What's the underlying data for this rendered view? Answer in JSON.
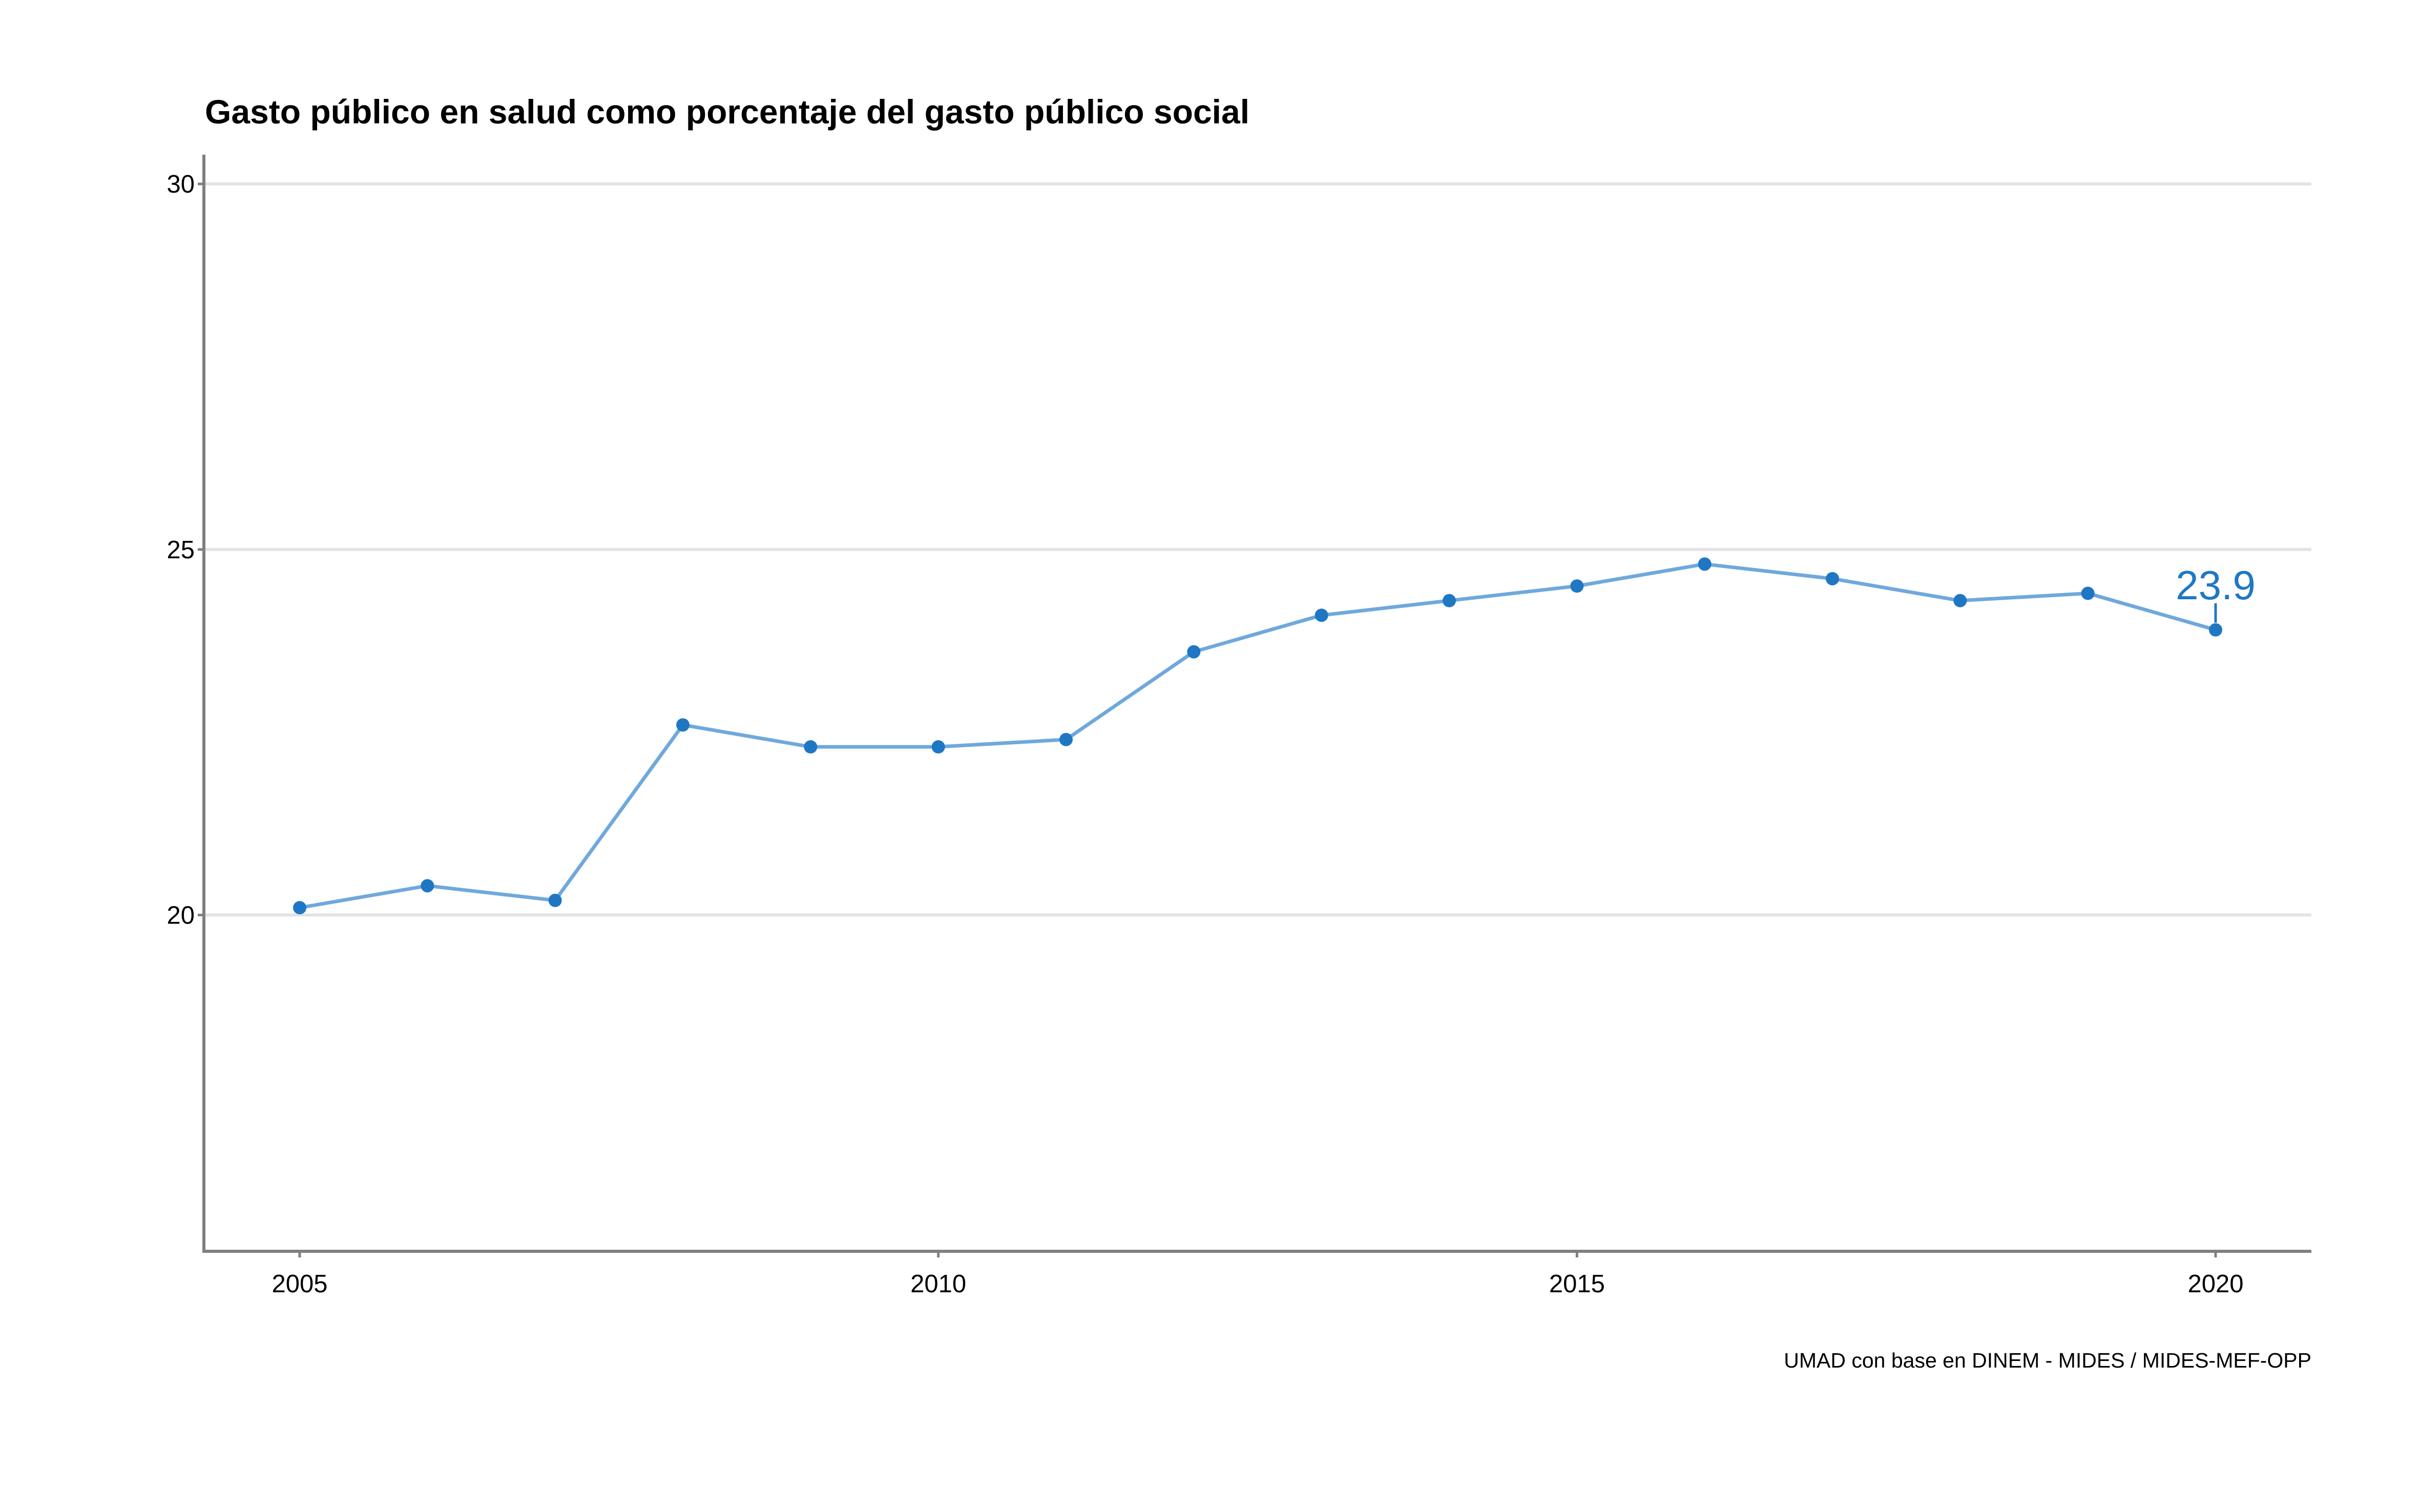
{
  "chart_data": {
    "type": "line",
    "title": "Gasto público en salud como porcentaje del gasto público social",
    "xlabel": "",
    "ylabel": "",
    "caption": "UMAD con base en DINEM - MIDES / MIDES-MEF-OPP",
    "x": [
      2005,
      2006,
      2007,
      2008,
      2009,
      2010,
      2011,
      2012,
      2013,
      2014,
      2015,
      2016,
      2017,
      2018,
      2019,
      2020
    ],
    "series": [
      {
        "values": [
          20.1,
          20.4,
          20.2,
          22.6,
          22.3,
          22.3,
          22.4,
          23.6,
          24.1,
          24.3,
          24.5,
          24.8,
          24.6,
          24.3,
          24.4,
          23.9
        ]
      }
    ],
    "xticks": [
      "2005",
      "2010",
      "2015",
      "2020"
    ],
    "yticks": [
      "20",
      "25",
      "30"
    ],
    "xlim": [
      2004.25,
      2020.75
    ],
    "ylim": [
      15.4,
      30.4
    ],
    "end_label": {
      "x": 2020,
      "text": "23.9"
    },
    "grid": "horizontal",
    "colors": {
      "line": "#6fa8dc",
      "points": "#1f77c4",
      "label": "#1f77c4",
      "grid": "#e3e3e3",
      "axis": "#7f7f7f"
    }
  }
}
